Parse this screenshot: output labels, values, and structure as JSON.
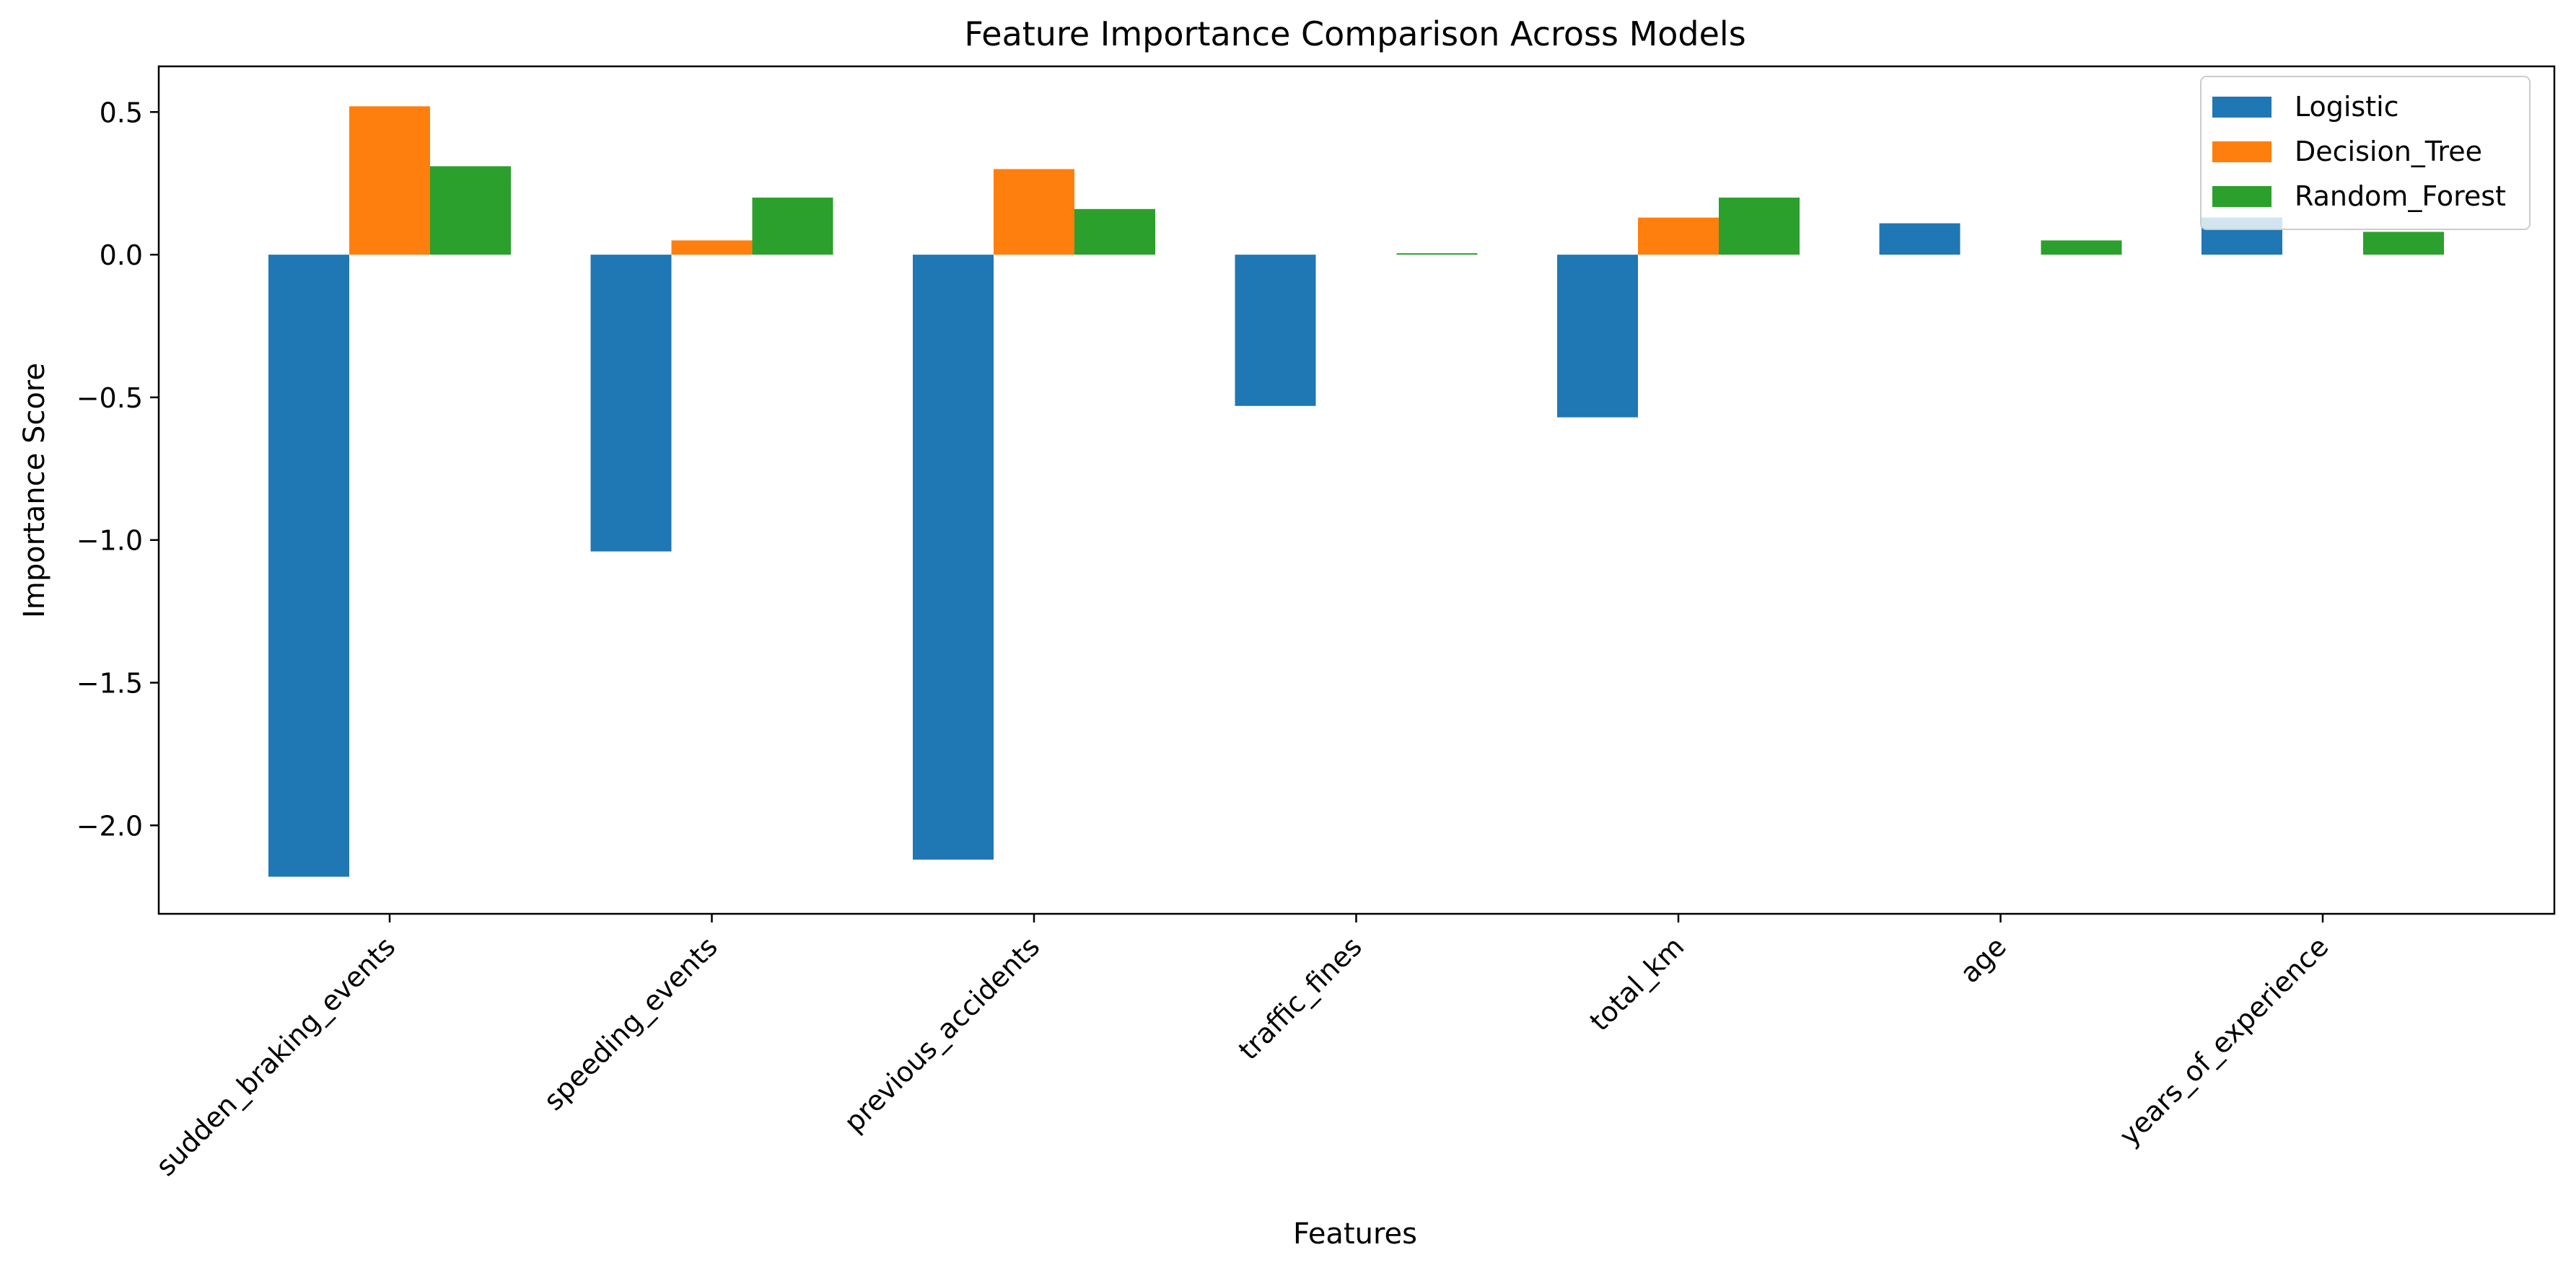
{
  "chart_data": {
    "type": "bar",
    "title": "Feature Importance Comparison Across Models",
    "xlabel": "Features",
    "ylabel": "Importance Score",
    "categories": [
      "sudden_braking_events",
      "speeding_events",
      "previous_accidents",
      "traffic_fines",
      "total_km",
      "age",
      "years_of_experience"
    ],
    "series": [
      {
        "name": "Logistic",
        "color": "#1f77b4",
        "values": [
          -2.18,
          -1.04,
          -2.12,
          -0.53,
          -0.57,
          0.11,
          0.13
        ]
      },
      {
        "name": "Decision_Tree",
        "color": "#ff7f0e",
        "values": [
          0.52,
          0.05,
          0.3,
          0.0,
          0.13,
          0.0,
          0.0
        ]
      },
      {
        "name": "Random_Forest",
        "color": "#2ca02c",
        "values": [
          0.31,
          0.2,
          0.16,
          0.005,
          0.2,
          0.05,
          0.08
        ]
      }
    ],
    "ylim": [
      -2.31,
      0.66
    ],
    "yticks": [
      0.5,
      0.0,
      -0.5,
      -1.0,
      -1.5,
      -2.0
    ],
    "ytick_labels": [
      "0.5",
      "0.0",
      "−0.5",
      "−1.0",
      "−1.5",
      "−2.0"
    ],
    "grid": false,
    "legend_position": "top-right"
  }
}
